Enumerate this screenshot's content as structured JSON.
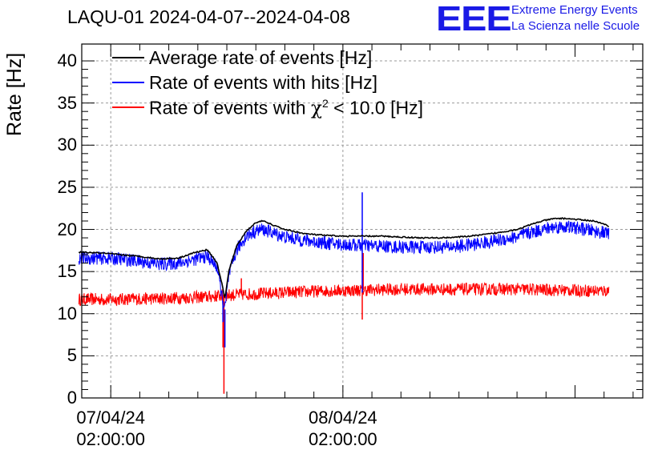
{
  "chart_data": {
    "type": "line",
    "title": "LAQU-01 2024-04-07--2024-04-08",
    "xlabel": "",
    "ylabel": "Rate [Hz]",
    "ylim": [
      0,
      42
    ],
    "yticks": [
      "0",
      "5",
      "10",
      "15",
      "20",
      "25",
      "30",
      "35",
      "40"
    ],
    "xlim_hours": [
      -3.0,
      55.0
    ],
    "xticks": [
      {
        "hour": 0,
        "date": "07/04/24",
        "time": "02:00:00"
      },
      {
        "hour": 24,
        "date": "08/04/24",
        "time": "02:00:00"
      }
    ],
    "legend": [
      {
        "label": "Average rate of events [Hz]",
        "color": "#000000"
      },
      {
        "label": "Rate of events with hits [Hz]",
        "color": "#0000ff"
      },
      {
        "label_prefix": "Rate of events with ",
        "label_symbol": "χ",
        "label_sup": "2",
        "label_suffix": " < 10.0 [Hz]",
        "color": "#ff0000"
      }
    ],
    "grid": true,
    "series": [
      {
        "name": "Average rate of events [Hz]",
        "color": "#000000",
        "x": [
          -3.3,
          -1,
          1,
          3,
          5,
          7,
          8.5,
          10,
          11,
          11.5,
          11.8,
          12.2,
          13,
          14,
          15,
          15.5,
          16,
          17,
          18,
          20,
          22,
          24,
          26,
          28,
          30,
          32,
          34,
          36,
          38,
          40,
          42,
          43,
          44,
          45,
          46,
          47,
          48,
          49,
          50,
          51.5
        ],
        "y": [
          17.3,
          17.2,
          17.0,
          16.8,
          16.5,
          16.6,
          17.2,
          17.6,
          16.0,
          13.5,
          11.8,
          15.0,
          18.0,
          19.8,
          20.8,
          21.0,
          20.9,
          20.4,
          20.0,
          19.5,
          19.3,
          19.2,
          19.2,
          19.2,
          19.1,
          19.0,
          19.0,
          19.1,
          19.3,
          19.6,
          20.0,
          20.4,
          20.8,
          21.1,
          21.3,
          21.3,
          21.2,
          21.1,
          21.0,
          20.4
        ]
      },
      {
        "name": "Rate of events with hits [Hz]",
        "color": "#0000ff",
        "x": [
          -3.3,
          -1,
          1,
          3,
          5,
          7,
          8.5,
          10,
          11,
          11.5,
          11.8,
          12.2,
          13,
          14,
          15,
          15.5,
          16,
          17,
          18,
          20,
          22,
          24,
          26,
          28,
          30,
          32,
          34,
          36,
          38,
          40,
          42,
          43,
          44,
          45,
          46,
          47,
          48,
          49,
          50,
          51.5
        ],
        "y": [
          16.6,
          16.6,
          16.5,
          16.2,
          15.9,
          16.0,
          16.4,
          16.8,
          15.5,
          12.0,
          10.5,
          14.5,
          17.5,
          19.2,
          19.8,
          20.0,
          19.9,
          19.5,
          19.1,
          18.7,
          18.4,
          18.2,
          18.1,
          18.0,
          17.9,
          17.9,
          17.9,
          18.0,
          18.3,
          18.7,
          19.1,
          19.5,
          19.8,
          20.1,
          20.3,
          20.3,
          20.2,
          20.0,
          19.8,
          19.5
        ],
        "spikes": [
          {
            "x": 11.6,
            "y": 9.0
          },
          {
            "x": 11.8,
            "y": 6.0
          },
          {
            "x": 26.0,
            "y": 24.4
          },
          {
            "x": 26.0,
            "y": 12.5
          }
        ]
      },
      {
        "name": "Rate of events with chi2 < 10.0 [Hz]",
        "color": "#ff0000",
        "x": [
          -3.3,
          0,
          5,
          10,
          12,
          14,
          18,
          22,
          26,
          30,
          34,
          38,
          42,
          46,
          51.5
        ],
        "y": [
          11.7,
          11.7,
          11.8,
          12.0,
          12.2,
          12.3,
          12.5,
          12.7,
          12.8,
          12.9,
          12.9,
          12.9,
          12.9,
          12.8,
          12.7
        ],
        "spikes": [
          {
            "x": 11.7,
            "y": 0.5
          },
          {
            "x": 11.6,
            "y": 6.0
          },
          {
            "x": 13.5,
            "y": 14.2
          },
          {
            "x": 26.0,
            "y": 9.3
          },
          {
            "x": 26.1,
            "y": 17.2
          }
        ]
      }
    ]
  },
  "logo": {
    "text": "EEE",
    "line1": "Extreme Energy Events",
    "line2": "La Scienza nelle Scuole"
  }
}
